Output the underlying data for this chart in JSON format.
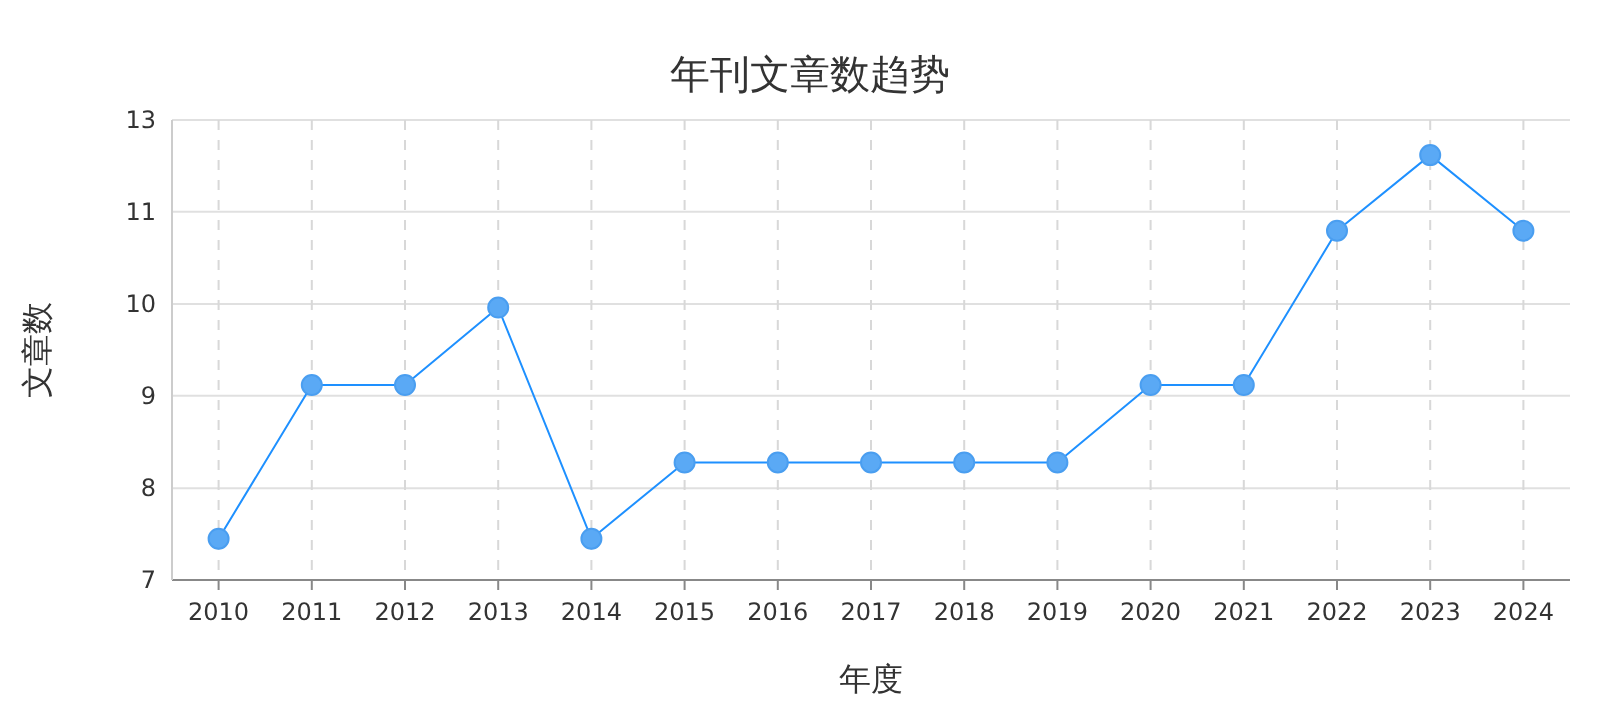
{
  "chart_data": {
    "type": "line",
    "title": "年刊文章数趋势",
    "xlabel": "年度",
    "ylabel": "文章数",
    "categories": [
      "2010",
      "2011",
      "2012",
      "2013",
      "2014",
      "2015",
      "2016",
      "2017",
      "2018",
      "2019",
      "2020",
      "2021",
      "2022",
      "2023",
      "2024"
    ],
    "series": [
      {
        "color": "#1e90ff",
        "values": [
          7.4,
          9.1,
          9.1,
          10.1,
          7.4,
          8.2,
          8.2,
          8.2,
          8.2,
          8.2,
          9.1,
          9.1,
          11.2,
          12.4,
          11.2
        ]
      }
    ],
    "log": true,
    "ylim": [
      7,
      13
    ],
    "yticks": [
      7,
      {
        "value": 7.92,
        "label": "8"
      },
      {
        "value": 8.97,
        "label": "9"
      },
      {
        "value": 10.15,
        "label": "10"
      },
      {
        "value": 11.49,
        "label": "11"
      },
      13
    ],
    "grid": true,
    "marker": "circle",
    "line_style": "solid"
  }
}
